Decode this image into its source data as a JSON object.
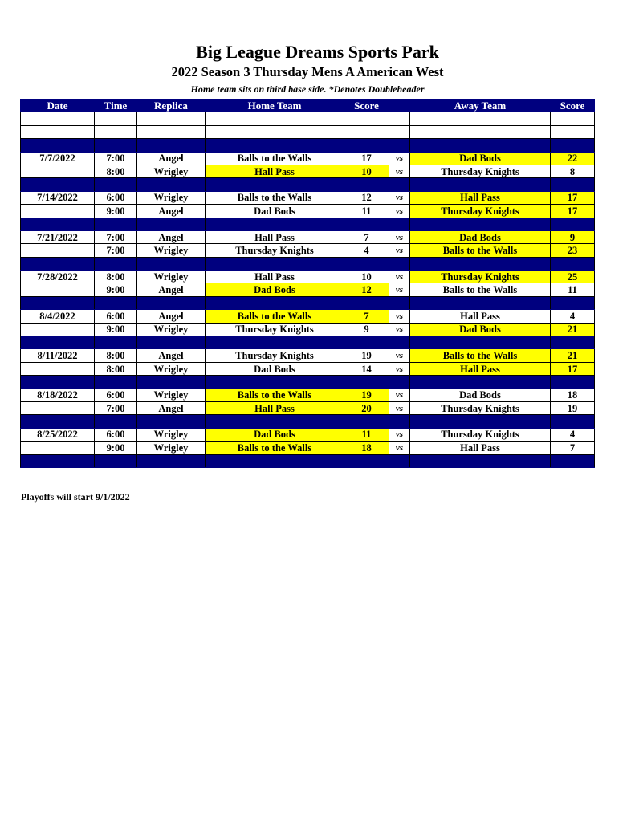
{
  "title": "Big League Dreams Sports Park",
  "subtitle": "2022 Season 3 Thursday Mens A American West",
  "note": "Home team sits on third base side.  *Denotes Doubleheader",
  "headers": [
    "Date",
    "Time",
    "Replica",
    "Home Team",
    "Score",
    "",
    "Away Team",
    "Score"
  ],
  "vs_label": "vs",
  "highlight_color": "#ffff00",
  "header_color": "#00007f",
  "weeks": [
    {
      "games": [
        {
          "date": "7/7/2022",
          "time": "7:00",
          "replica": "Angel",
          "home": "Balls to the Walls",
          "home_score": "17",
          "away": "Dad Bods",
          "away_score": "22",
          "winner": "away"
        },
        {
          "date": "",
          "time": "8:00",
          "replica": "Wrigley",
          "home": "Hall Pass",
          "home_score": "10",
          "away": "Thursday Knights",
          "away_score": "8",
          "winner": "home"
        }
      ]
    },
    {
      "games": [
        {
          "date": "7/14/2022",
          "time": "6:00",
          "replica": "Wrigley",
          "home": "Balls to the Walls",
          "home_score": "12",
          "away": "Hall Pass",
          "away_score": "17",
          "winner": "away"
        },
        {
          "date": "",
          "time": "9:00",
          "replica": "Angel",
          "home": "Dad Bods",
          "home_score": "11",
          "away": "Thursday Knights",
          "away_score": "17",
          "winner": "away"
        }
      ]
    },
    {
      "games": [
        {
          "date": "7/21/2022",
          "time": "7:00",
          "replica": "Angel",
          "home": "Hall Pass",
          "home_score": "7",
          "away": "Dad Bods",
          "away_score": "9",
          "winner": "away"
        },
        {
          "date": "",
          "time": "7:00",
          "replica": "Wrigley",
          "home": "Thursday Knights",
          "home_score": "4",
          "away": "Balls to the Walls",
          "away_score": "23",
          "winner": "away"
        }
      ]
    },
    {
      "games": [
        {
          "date": "7/28/2022",
          "time": "8:00",
          "replica": "Wrigley",
          "home": "Hall Pass",
          "home_score": "10",
          "away": "Thursday Knights",
          "away_score": "25",
          "winner": "away"
        },
        {
          "date": "",
          "time": "9:00",
          "replica": "Angel",
          "home": "Dad Bods",
          "home_score": "12",
          "away": "Balls to the Walls",
          "away_score": "11",
          "winner": "home"
        }
      ]
    },
    {
      "games": [
        {
          "date": "8/4/2022",
          "time": "6:00",
          "replica": "Angel",
          "home": "Balls to the Walls",
          "home_score": "7",
          "away": "Hall Pass",
          "away_score": "4",
          "winner": "home"
        },
        {
          "date": "",
          "time": "9:00",
          "replica": "Wrigley",
          "home": "Thursday Knights",
          "home_score": "9",
          "away": "Dad Bods",
          "away_score": "21",
          "winner": "away"
        }
      ]
    },
    {
      "games": [
        {
          "date": "8/11/2022",
          "time": "8:00",
          "replica": "Angel",
          "home": "Thursday Knights",
          "home_score": "19",
          "away": "Balls to the Walls",
          "away_score": "21",
          "winner": "away"
        },
        {
          "date": "",
          "time": "8:00",
          "replica": "Wrigley",
          "home": "Dad Bods",
          "home_score": "14",
          "away": "Hall Pass",
          "away_score": "17",
          "winner": "away"
        }
      ]
    },
    {
      "games": [
        {
          "date": "8/18/2022",
          "time": "6:00",
          "replica": "Wrigley",
          "home": "Balls to the Walls",
          "home_score": "19",
          "away": "Dad Bods",
          "away_score": "18",
          "winner": "home"
        },
        {
          "date": "",
          "time": "7:00",
          "replica": "Angel",
          "home": "Hall Pass",
          "home_score": "20",
          "away": "Thursday Knights",
          "away_score": "19",
          "winner": "home"
        }
      ]
    },
    {
      "games": [
        {
          "date": "8/25/2022",
          "time": "6:00",
          "replica": "Wrigley",
          "home": "Dad Bods",
          "home_score": "11",
          "away": "Thursday Knights",
          "away_score": "4",
          "winner": "home"
        },
        {
          "date": "",
          "time": "9:00",
          "replica": "Wrigley",
          "home": "Balls to the Walls",
          "home_score": "18",
          "away": "Hall Pass",
          "away_score": "7",
          "winner": "home"
        }
      ]
    }
  ],
  "footer": "Playoffs will start 9/1/2022"
}
